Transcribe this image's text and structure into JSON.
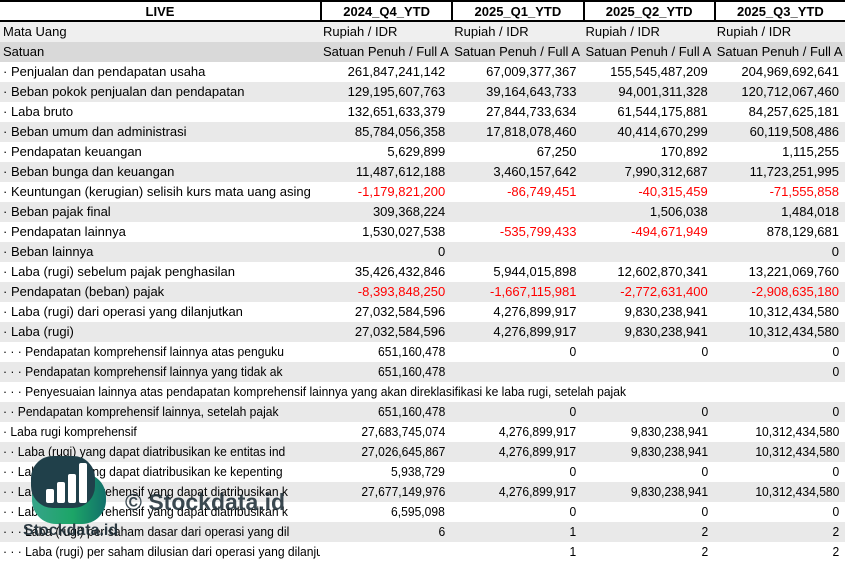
{
  "table": {
    "corner_label": "LIVE",
    "columns": [
      "2024_Q4_YTD",
      "2025_Q1_YTD",
      "2025_Q2_YTD",
      "2025_Q3_YTD"
    ],
    "meta_rows": [
      {
        "label": "Mata Uang",
        "values": [
          "Rupiah / IDR",
          "Rupiah / IDR",
          "Rupiah / IDR",
          "Rupiah / IDR"
        ]
      },
      {
        "label": "Satuan",
        "values": [
          "Satuan Penuh / Full A",
          "Satuan Penuh / Full A",
          "Satuan Penuh / Full A",
          "Satuan Penuh / Full A"
        ]
      }
    ],
    "rows": [
      {
        "label": "· Penjualan dan pendapatan usaha",
        "values": [
          "261,847,241,142",
          "67,009,377,367",
          "155,545,487,209",
          "204,969,692,641"
        ]
      },
      {
        "label": "· Beban pokok penjualan dan pendapatan",
        "values": [
          "129,195,607,763",
          "39,164,643,733",
          "94,001,311,328",
          "120,712,067,460"
        ]
      },
      {
        "label": "· Laba bruto",
        "values": [
          "132,651,633,379",
          "27,844,733,634",
          "61,544,175,881",
          "84,257,625,181"
        ]
      },
      {
        "label": "· Beban umum dan administrasi",
        "values": [
          "85,784,056,358",
          "17,818,078,460",
          "40,414,670,299",
          "60,119,508,486"
        ]
      },
      {
        "label": "· Pendapatan keuangan",
        "values": [
          "5,629,899",
          "67,250",
          "170,892",
          "1,115,255"
        ]
      },
      {
        "label": "· Beban bunga dan keuangan",
        "values": [
          "11,487,612,188",
          "3,460,157,642",
          "7,990,312,687",
          "11,723,251,995"
        ]
      },
      {
        "label": "· Keuntungan (kerugian) selisih kurs mata uang asing",
        "values": [
          "-1,179,821,200",
          "-86,749,451",
          "-40,315,459",
          "-71,555,858"
        ]
      },
      {
        "label": "· Beban pajak final",
        "values": [
          "309,368,224",
          "",
          "1,506,038",
          "1,484,018"
        ]
      },
      {
        "label": "· Pendapatan lainnya",
        "values": [
          "1,530,027,538",
          "-535,799,433",
          "-494,671,949",
          "878,129,681"
        ]
      },
      {
        "label": "· Beban lainnya",
        "values": [
          "0",
          "",
          "",
          "0"
        ]
      },
      {
        "label": "· Laba (rugi) sebelum pajak penghasilan",
        "values": [
          "35,426,432,846",
          "5,944,015,898",
          "12,602,870,341",
          "13,221,069,760"
        ]
      },
      {
        "label": "· Pendapatan (beban) pajak",
        "values": [
          "-8,393,848,250",
          "-1,667,115,981",
          "-2,772,631,400",
          "-2,908,635,180"
        ]
      },
      {
        "label": "· Laba (rugi) dari operasi yang dilanjutkan",
        "values": [
          "27,032,584,596",
          "4,276,899,917",
          "9,830,238,941",
          "10,312,434,580"
        ]
      },
      {
        "label": "· Laba (rugi)",
        "values": [
          "27,032,584,596",
          "4,276,899,917",
          "9,830,238,941",
          "10,312,434,580"
        ]
      },
      {
        "label": "· · · Pendapatan komprehensif lainnya atas penguku",
        "condensed": true,
        "values": [
          "651,160,478",
          "0",
          "0",
          "0"
        ]
      },
      {
        "label": "· · · Pendapatan komprehensif lainnya yang tidak ak",
        "condensed": true,
        "values": [
          "651,160,478",
          "",
          "",
          "0"
        ]
      },
      {
        "label": "· · · Penyesuaian lainnya atas pendapatan komprehensif lainnya yang akan direklasifikasi ke laba rugi, setelah pajak",
        "condensed": true,
        "span": true,
        "values": [
          "",
          "",
          "",
          ""
        ]
      },
      {
        "label": "· · Pendapatan komprehensif lainnya, setelah pajak",
        "condensed": true,
        "values": [
          "651,160,478",
          "0",
          "0",
          "0"
        ]
      },
      {
        "label": "· Laba rugi komprehensif",
        "condensed": true,
        "values": [
          "27,683,745,074",
          "4,276,899,917",
          "9,830,238,941",
          "10,312,434,580"
        ]
      },
      {
        "label": "· · Laba (rugi) yang dapat diatribusikan ke entitas ind",
        "condensed": true,
        "values": [
          "27,026,645,867",
          "4,276,899,917",
          "9,830,238,941",
          "10,312,434,580"
        ]
      },
      {
        "label": "· · Laba (rugi) yang dapat diatribusikan ke kepenting",
        "condensed": true,
        "values": [
          "5,938,729",
          "0",
          "0",
          "0"
        ]
      },
      {
        "label": "· · Laba rugi komprehensif yang dapat diatribusikan k",
        "condensed": true,
        "values": [
          "27,677,149,976",
          "4,276,899,917",
          "9,830,238,941",
          "10,312,434,580"
        ]
      },
      {
        "label": "· · Laba rugi komprehensif yang dapat diatribusikan k",
        "condensed": true,
        "values": [
          "6,595,098",
          "0",
          "0",
          "0"
        ]
      },
      {
        "label": "· · · Laba (rugi) per saham dasar dari operasi yang dil",
        "condensed": true,
        "values": [
          "6",
          "1",
          "2",
          "2"
        ]
      },
      {
        "label": "· · · Laba (rugi) per saham dilusian dari operasi yang dilanjutkan",
        "condensed": true,
        "values": [
          "",
          "1",
          "2",
          "2"
        ]
      }
    ]
  },
  "watermark": {
    "copyright_text": "© Stockdata.id",
    "brand_text": "Stockdata.id",
    "logo_icon": "bar-chart-logo"
  },
  "colors": {
    "negative": "#ff0000",
    "stripe_bg": "#e9e9e9",
    "mata_uang_bg": "#efefef",
    "satuan_bg": "#d9d9d9",
    "logo_navy": "#20404a",
    "logo_teal_light": "#36a489",
    "logo_teal_dark": "#12706a",
    "logo_green": "#1ca567",
    "watermark_text": "#1a2a33"
  }
}
